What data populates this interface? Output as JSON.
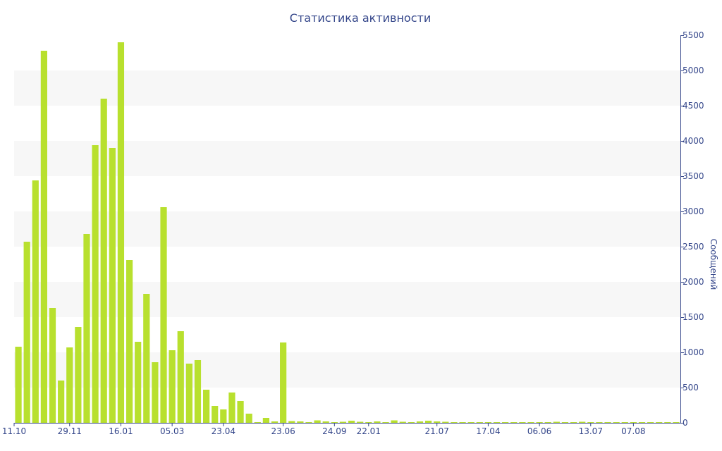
{
  "chart_data": {
    "type": "bar",
    "title": "Статистика активности",
    "ylabel": "Сообщений",
    "xlabel": "",
    "ylim": [
      0,
      5500
    ],
    "y_axis_position": "right",
    "y_ticks": [
      0,
      500,
      1000,
      1500,
      2000,
      2500,
      3000,
      3500,
      4000,
      4500,
      5000,
      5500
    ],
    "x_tick_labels": [
      "11.10",
      "29.11",
      "16.01",
      "05.03",
      "23.04",
      "23.06",
      "24.09",
      "22.01",
      "21.07",
      "17.04",
      "06.06",
      "13.07",
      "07.08"
    ],
    "x_tick_bar_index": [
      0,
      6,
      12,
      18,
      24,
      31,
      37,
      41,
      49,
      55,
      61,
      67,
      72
    ],
    "grid": "alternating horizontal bands",
    "series": [
      {
        "color": "#b8e02e",
        "values": [
          1080,
          2570,
          3440,
          5280,
          1630,
          600,
          1070,
          1360,
          2680,
          3940,
          4600,
          3900,
          5400,
          2310,
          1150,
          1830,
          860,
          3060,
          1030,
          1300,
          840,
          890,
          470,
          240,
          190,
          430,
          310,
          130,
          10,
          70,
          20,
          1140,
          25,
          20,
          10,
          35,
          20,
          10,
          15,
          30,
          15,
          10,
          20,
          10,
          35,
          15,
          10,
          20,
          30,
          20,
          15,
          10,
          10,
          10,
          10,
          10,
          10,
          10,
          10,
          10,
          10,
          10,
          10,
          15,
          10,
          10,
          15,
          10,
          10,
          10,
          10,
          10,
          10,
          10,
          10,
          10,
          10,
          10
        ]
      }
    ]
  }
}
